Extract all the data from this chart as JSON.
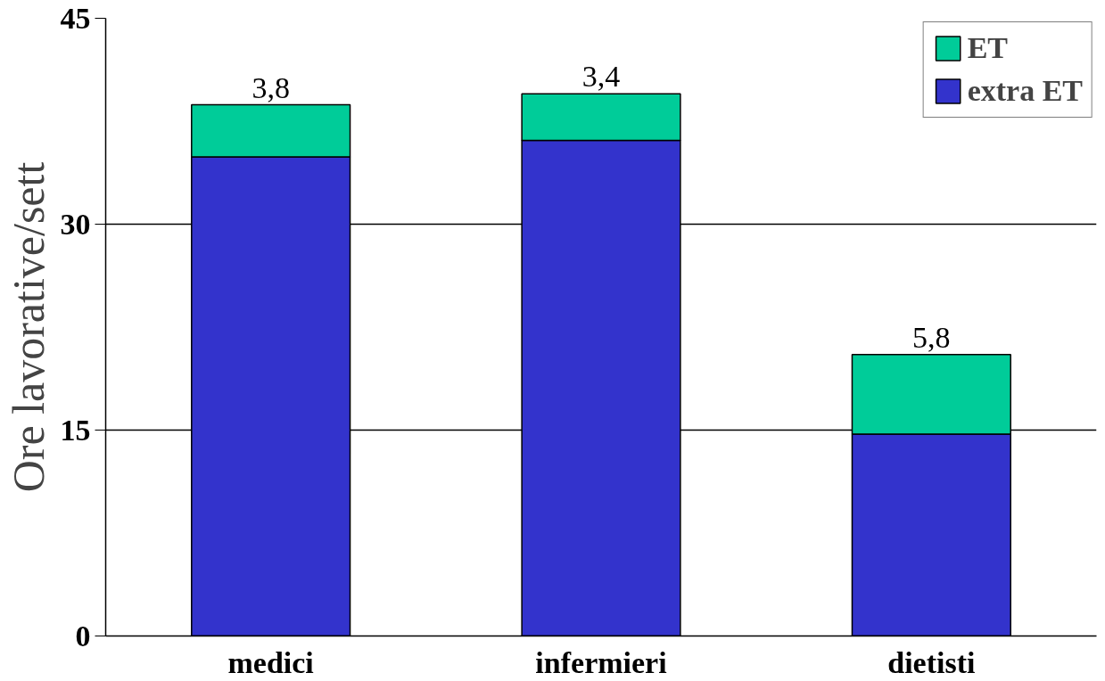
{
  "chart_data": {
    "type": "bar",
    "stacked": true,
    "ylabel": "Ore lavorative/sett",
    "categories": [
      "medici",
      "infermieri",
      "dietisti"
    ],
    "series": [
      {
        "name": "extra ET",
        "color": "#3333cc",
        "values": [
          34.9,
          36.1,
          14.7
        ]
      },
      {
        "name": "ET",
        "color": "#00cc99",
        "values": [
          3.8,
          3.4,
          5.8
        ],
        "value_labels": [
          "3,8",
          "3,4",
          "5,8"
        ]
      }
    ],
    "ylim": [
      0,
      45
    ],
    "yticks": [
      0,
      15,
      30,
      45
    ],
    "grid": "y",
    "legend": "top right"
  }
}
